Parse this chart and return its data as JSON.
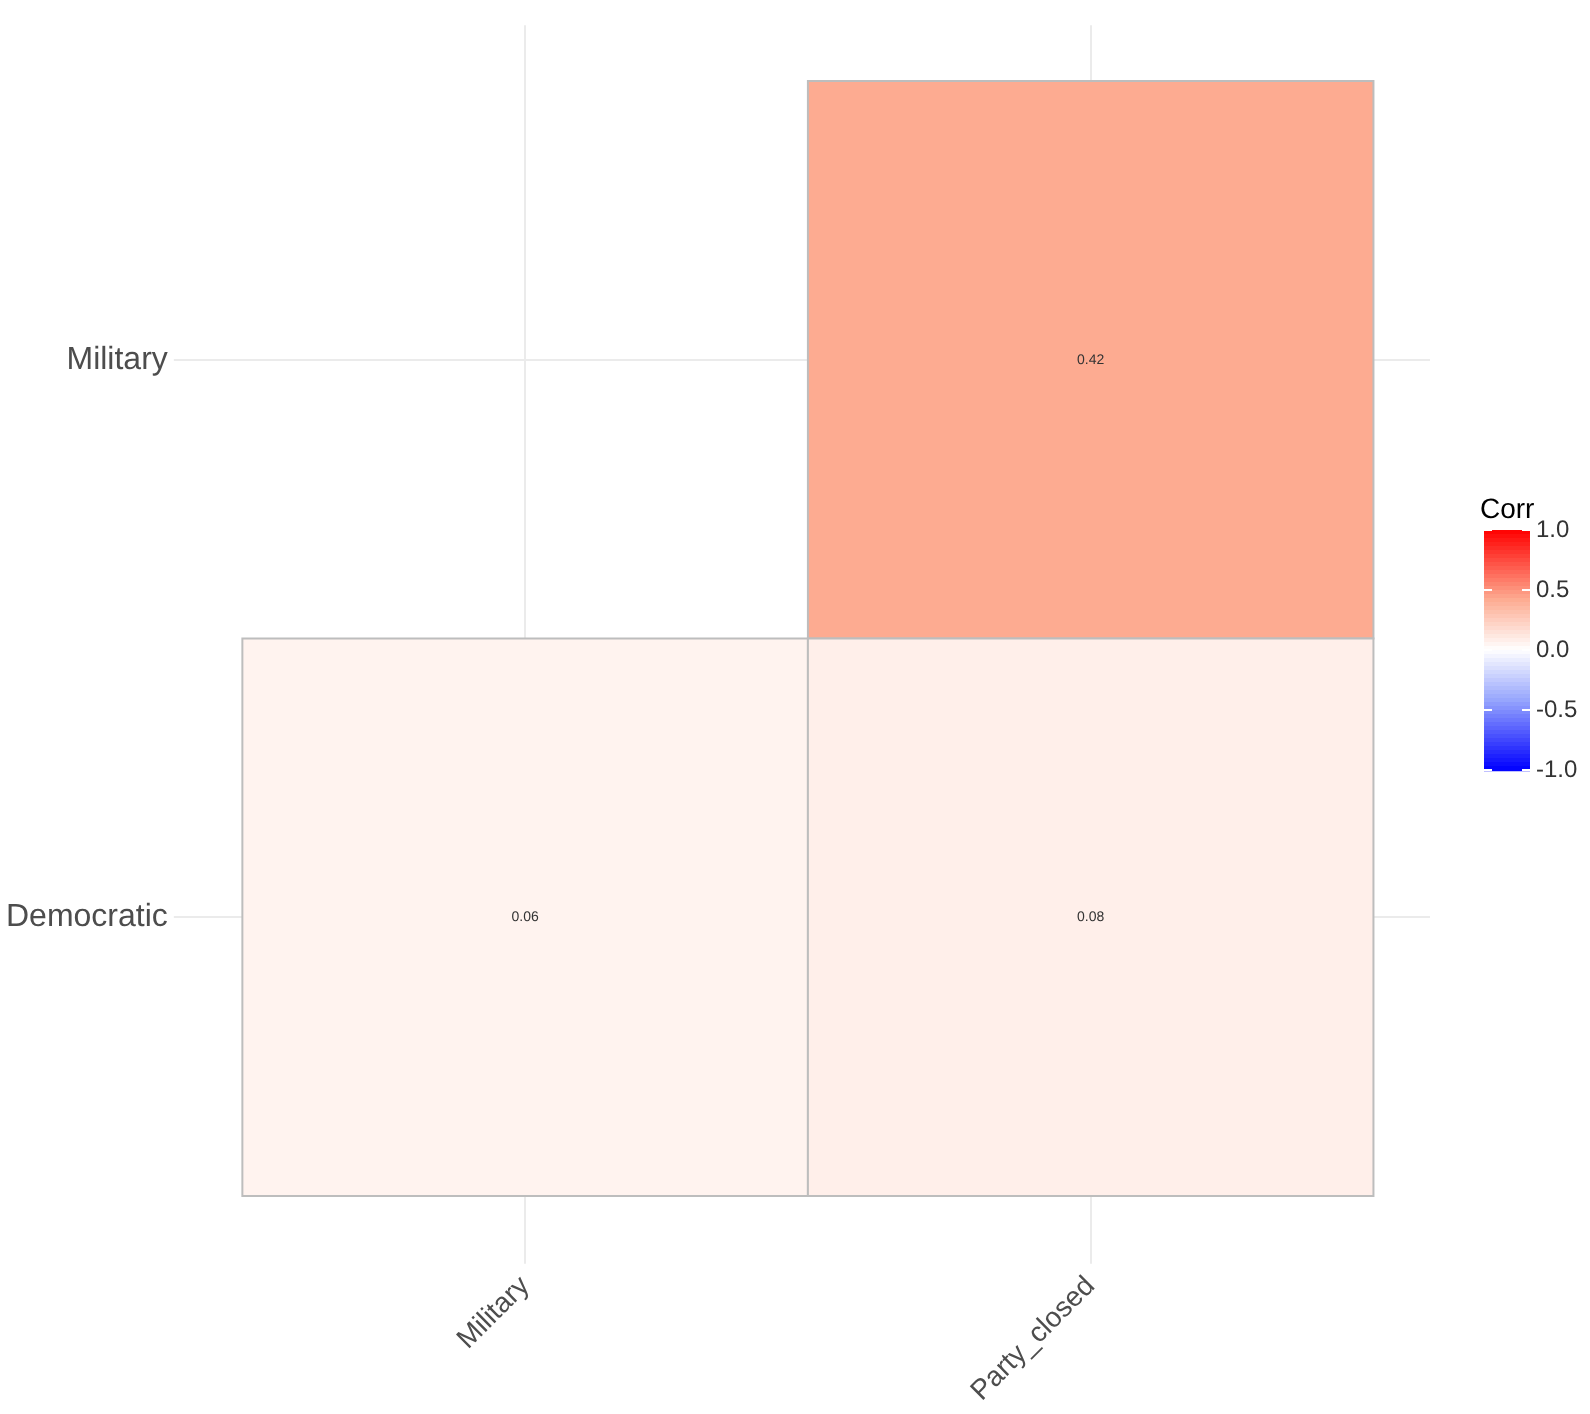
{
  "chart_data": {
    "type": "heatmap",
    "categories": [
      "Military",
      "Party_closed"
    ],
    "y_categories": [
      "Military",
      "Democratic"
    ],
    "cells": [
      [
        null,
        0.42
      ],
      [
        0.06,
        0.08
      ]
    ],
    "data_labels": true,
    "clabel": "Corr",
    "clim": [
      -1,
      1
    ],
    "cticks": [
      {
        "value": -1,
        "label": "-1.0"
      },
      -0.5,
      {
        "value": 0,
        "label": "0.0"
      },
      0.5,
      {
        "value": 1,
        "label": "1.0"
      }
    ],
    "grid": true
  }
}
